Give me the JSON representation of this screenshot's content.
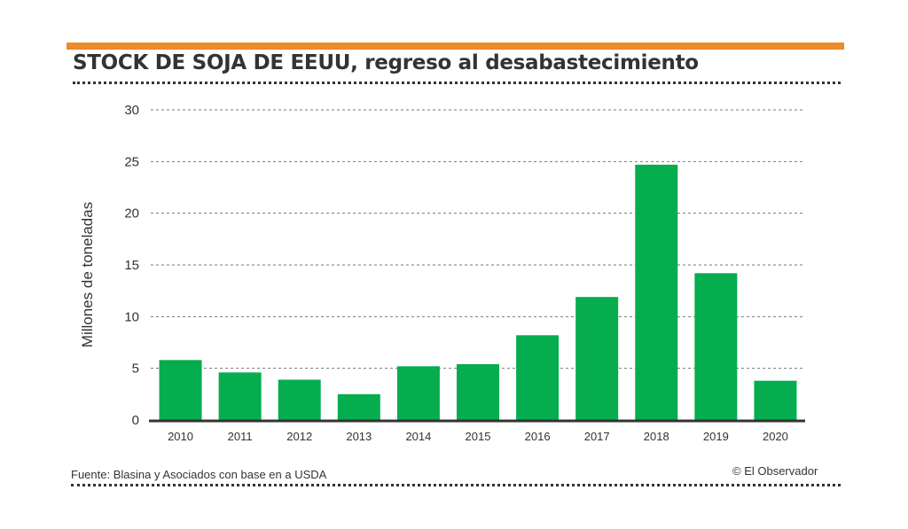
{
  "header": {
    "title": "STOCK DE SOJA DE EEUU, regreso al desabastecimiento",
    "accent_color": "#ec8a2a"
  },
  "footer": {
    "source": "Fuente: Blasina y Asociados con base en a USDA",
    "credit": "© El Observador"
  },
  "chart_data": {
    "type": "bar",
    "title": "STOCK DE SOJA DE EEUU, regreso al desabastecimiento",
    "xlabel": "",
    "ylabel": "Millones de toneladas",
    "categories": [
      "2010",
      "2011",
      "2012",
      "2013",
      "2014",
      "2015",
      "2016",
      "2017",
      "2018",
      "2019",
      "2020"
    ],
    "values": [
      5.8,
      4.6,
      3.9,
      2.5,
      5.2,
      5.4,
      8.2,
      11.9,
      24.7,
      14.2,
      3.8
    ],
    "ylim": [
      0,
      30
    ],
    "yticks": [
      "0",
      "5",
      "10",
      "15",
      "20",
      "25",
      "30"
    ],
    "grid": true,
    "bar_color": "#05ad4f",
    "legend": "none"
  }
}
